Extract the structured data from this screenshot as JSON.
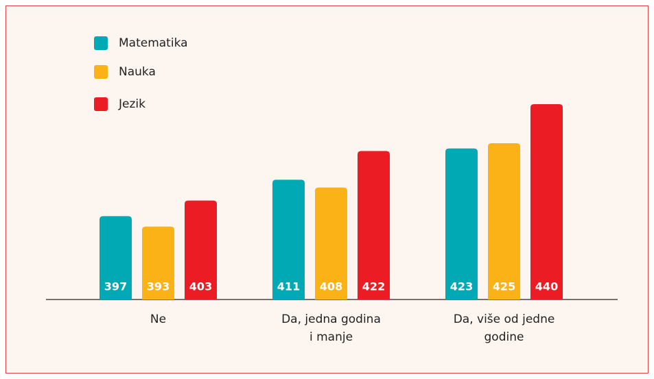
{
  "chart_data": {
    "type": "bar",
    "categories": [
      "Ne",
      "Da, jedna godina i manje",
      "Da, više od jedne godine"
    ],
    "series": [
      {
        "name": "Matematika",
        "color": "#00a9b4",
        "values": [
          397,
          411,
          423
        ]
      },
      {
        "name": "Nauka",
        "color": "#fbb216",
        "values": [
          393,
          408,
          425
        ]
      },
      {
        "name": "Jezik",
        "color": "#ec1c24",
        "values": [
          403,
          422,
          440
        ]
      }
    ],
    "ylim": [
      365,
      440
    ],
    "legend": "top-left"
  }
}
